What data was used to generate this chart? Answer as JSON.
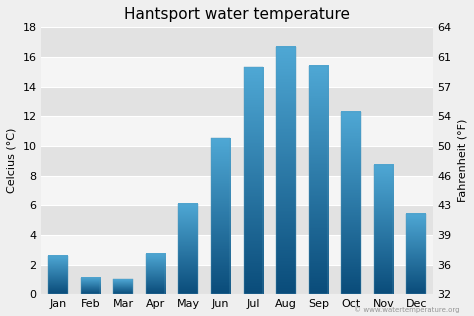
{
  "title": "Hantsport water temperature",
  "months": [
    "Jan",
    "Feb",
    "Mar",
    "Apr",
    "May",
    "Jun",
    "Jul",
    "Aug",
    "Sep",
    "Oct",
    "Nov",
    "Dec"
  ],
  "values_c": [
    2.6,
    1.1,
    1.0,
    2.7,
    6.1,
    10.5,
    15.3,
    16.7,
    15.4,
    12.3,
    8.7,
    5.4
  ],
  "ylabel_left": "Celcius (°C)",
  "ylabel_right": "Fahrenheit (°F)",
  "ylim_left": [
    0,
    18
  ],
  "ylim_right": [
    32,
    64
  ],
  "yticks_left": [
    0,
    2,
    4,
    6,
    8,
    10,
    12,
    14,
    16,
    18
  ],
  "yticks_right": [
    32,
    36,
    39,
    43,
    46,
    50,
    54,
    57,
    61,
    64
  ],
  "bar_color_top": "#4fa8d5",
  "bar_color_bottom": "#0a4c7a",
  "background_color": "#efefef",
  "stripe_colors": [
    "#e2e2e2",
    "#f5f5f5"
  ],
  "title_fontsize": 11,
  "label_fontsize": 8,
  "tick_fontsize": 8,
  "watermark": "© www.watertemperature.org"
}
